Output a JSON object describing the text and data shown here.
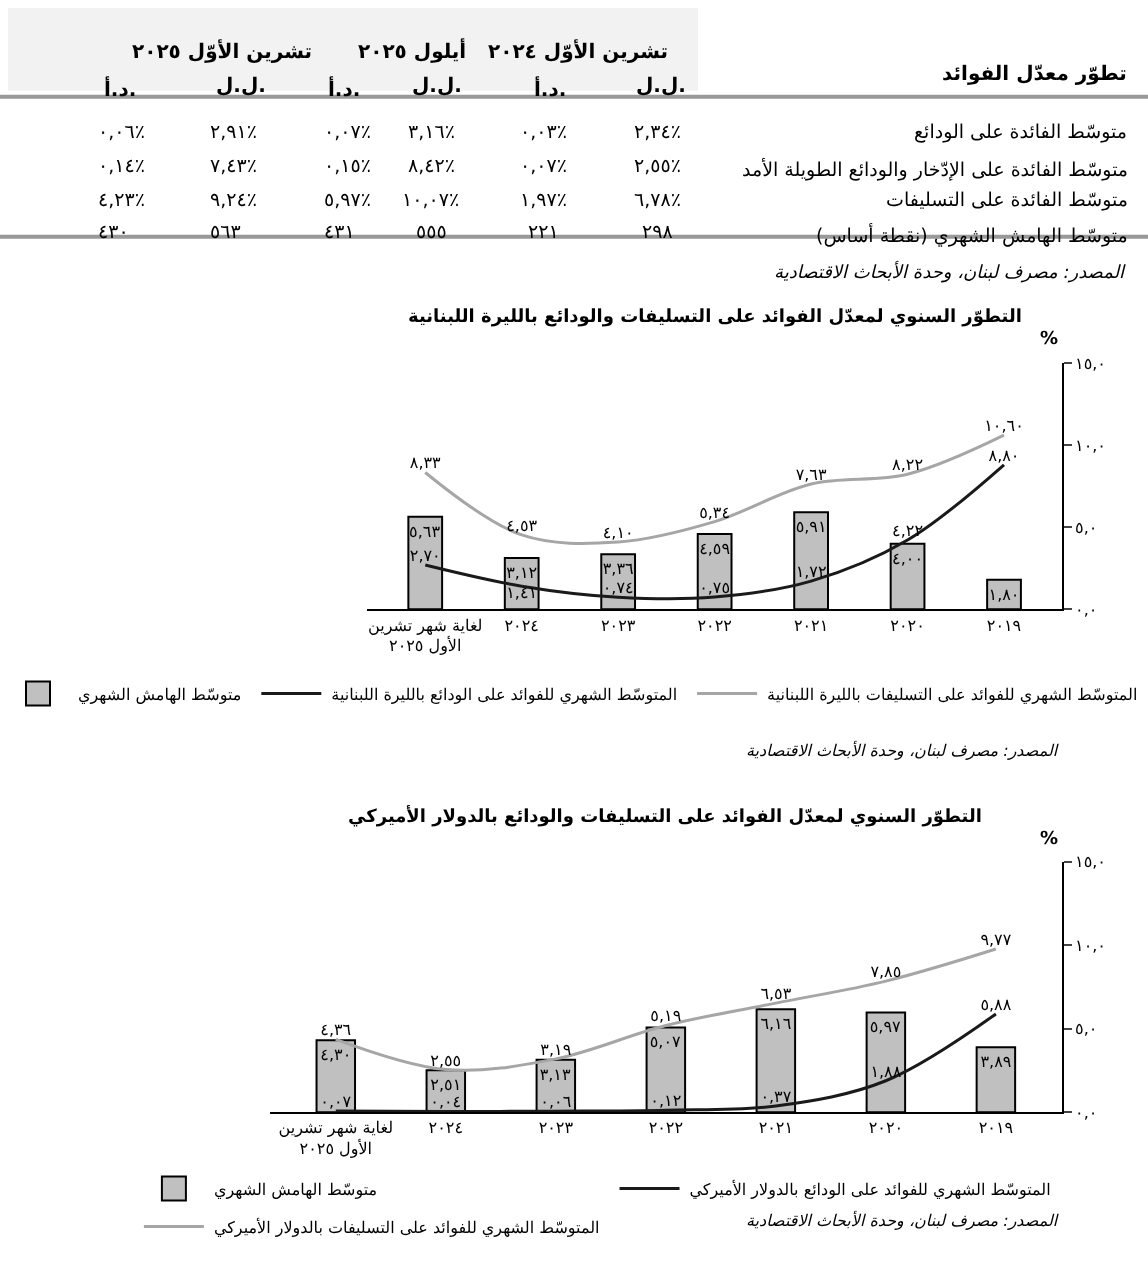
{
  "chart_data": [
    {
      "type": "other",
      "title": "تطوّر معدّل الفوائد",
      "categories": [
        "د.أ.",
        "ل.ل.",
        "د.أ.",
        "ل.ل.",
        "د.أ.",
        "ل.ل."
      ],
      "y_categories": [
        "متوسّط الفائدة على الودائع",
        "متوسّط الفائدة على الإدّخار والودائع الطويلة الأمد",
        "متوسّط الفائدة على التسليفات",
        "متوسّط الهامش الشهري (نقطة أساس)"
      ],
      "cell_labels": [
        [
          "٠,٠٦٪",
          "٢,٩١٪",
          "٠,٠٧٪",
          "٣,١٦٪",
          "٠,٠٣٪",
          "٢,٣٤٪"
        ],
        [
          "٠,١٤٪",
          "٧,٤٣٪",
          "٠,١٥٪",
          "٨,٤٢٪",
          "٠,٠٧٪",
          "٢,٥٥٪"
        ],
        [
          "٤,٢٣٪",
          "٩,٢٤٪",
          "٥,٩٧٪",
          "١٠,٠٧٪",
          "١,٩٧٪",
          "٦,٧٨٪"
        ],
        [
          "٤٣٠",
          "٥٦٣",
          "٤٣١",
          "٥٥٥",
          "٢٢١",
          "٢٩٨"
        ]
      ],
      "annotations": [
        "تشرين الأوّل ٢٠٢٥",
        "أيلول ٢٠٢٥",
        "تشرين الأوّل ٢٠٢٤",
        "المصدر: مصرف لبنان، وحدة الأبحاث الاقتصادية"
      ]
    },
    {
      "type": "bar",
      "title": "التطوّر السنوي لمعدّل الفوائد على التسليفات والودائع بالليرة اللبنانية",
      "ylabel": "%",
      "categories": [
        "لغاية شهر تشرين الأول ٢٠٢٥",
        "٢٠٢٤",
        "٢٠٢٣",
        "٢٠٢٢",
        "٢٠٢١",
        "٢٠٢٠",
        "٢٠١٩"
      ],
      "series": [
        {
          "name": "متوسّط الهامش الشهري",
          "type": "bar",
          "color": "#c0c0c0",
          "values": [
            5.63,
            3.12,
            3.36,
            4.59,
            5.91,
            4.0,
            1.8
          ],
          "value_labels": [
            "٥,٦٣",
            "٣,١٢",
            "٣,٣٦",
            "٤,٥٩",
            "٥,٩١",
            "٤,٠٠",
            "١,٨٠"
          ]
        },
        {
          "name": "المتوسّط الشهري للفوائد على الودائع بالليرة اللبنانية",
          "type": "line",
          "color": "#1a1a1a",
          "values": [
            2.7,
            1.41,
            0.74,
            0.75,
            1.72,
            4.22,
            8.8
          ],
          "value_labels": [
            "٢,٧٠",
            "١,٤١",
            "٠,٧٤",
            "٠,٧٥",
            "١,٧٢",
            "٤,٢٢",
            "٨,٨٠"
          ]
        },
        {
          "name": "المتوسّط الشهري للفوائد على التسليفات بالليرة اللبنانية",
          "type": "line",
          "color": "#a6a6a6",
          "values": [
            8.33,
            4.53,
            4.1,
            5.34,
            7.63,
            8.22,
            10.6
          ],
          "value_labels": [
            "٨,٣٣",
            "٤,٥٣",
            "٤,١٠",
            "٥,٣٤",
            "٧,٦٣",
            "٨,٢٢",
            "١٠,٦٠"
          ]
        }
      ],
      "ylim": [
        0,
        15
      ],
      "yticks": [
        {
          "value": 0,
          "label": "٠,٠"
        },
        {
          "value": 5,
          "label": "٥,٠"
        },
        {
          "value": 10,
          "label": "١٠,٠"
        },
        {
          "value": 15,
          "label": "١٥,٠"
        }
      ],
      "legend": "bottom",
      "annotations": [
        "المصدر: مصرف لبنان، وحدة الأبحاث الاقتصادية"
      ]
    },
    {
      "type": "bar",
      "title": "التطوّر السنوي لمعدّل الفوائد على التسليفات والودائع بالدولار الأميركي",
      "ylabel": "%",
      "categories": [
        "لغاية شهر تشرين الأول ٢٠٢٥",
        "٢٠٢٤",
        "٢٠٢٣",
        "٢٠٢٢",
        "٢٠٢١",
        "٢٠٢٠",
        "٢٠١٩"
      ],
      "series": [
        {
          "name": "متوسّط الهامش الشهري",
          "type": "bar",
          "color": "#c0c0c0",
          "values": [
            4.3,
            2.51,
            3.13,
            5.07,
            6.16,
            5.97,
            3.89
          ],
          "value_labels": [
            "٤,٣٠",
            "٢,٥١",
            "٣,١٣",
            "٥,٠٧",
            "٦,١٦",
            "٥,٩٧",
            "٣,٨٩"
          ]
        },
        {
          "name": "المتوسّط الشهري للفوائد على الودائع بالدولار الأميركي",
          "type": "line",
          "color": "#1a1a1a",
          "values": [
            0.07,
            0.04,
            0.06,
            0.12,
            0.37,
            1.88,
            5.88
          ],
          "value_labels": [
            "٠,٠٧",
            "٠,٠٤",
            "٠,٠٦",
            "٠,١٢",
            "٠,٣٧",
            "١,٨٨",
            "٥,٨٨"
          ]
        },
        {
          "name": "المتوسّط الشهري للفوائد على التسليفات بالدولار الأميركي",
          "type": "line",
          "color": "#a6a6a6",
          "values": [
            4.36,
            2.55,
            3.19,
            5.19,
            6.53,
            7.85,
            9.77
          ],
          "value_labels": [
            "٤,٣٦",
            "٢,٥٥",
            "٣,١٩",
            "٥,١٩",
            "٦,٥٣",
            "٧,٨٥",
            "٩,٧٧"
          ]
        }
      ],
      "ylim": [
        0,
        15
      ],
      "yticks": [
        {
          "value": 0,
          "label": "٠,٠"
        },
        {
          "value": 5,
          "label": "٥,٠"
        },
        {
          "value": 10,
          "label": "١٠,٠"
        },
        {
          "value": 15,
          "label": "١٥,٠"
        }
      ],
      "legend": "bottom",
      "annotations": [
        "المصدر: مصرف لبنان، وحدة الأبحاث الاقتصادية"
      ]
    }
  ]
}
